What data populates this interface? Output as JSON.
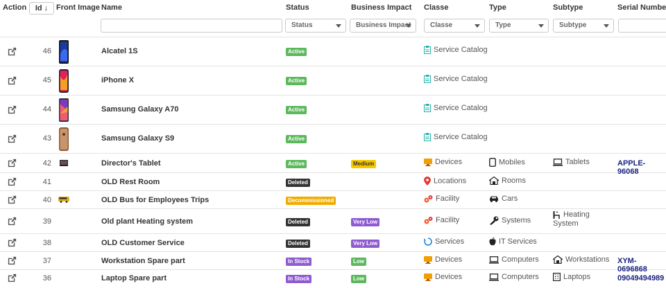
{
  "header": {
    "action": "Action",
    "id": "Id",
    "front_image": "Front Image",
    "name": "Name",
    "status": "Status",
    "business_impact": "Business Impact",
    "classe": "Classe",
    "type": "Type",
    "subtype": "Subtype",
    "serial_number": "Serial Number"
  },
  "filters": {
    "status": "Status",
    "business_impact": "Business Impact",
    "classe": "Classe",
    "type": "Type",
    "subtype": "Subtype"
  },
  "rows": [
    {
      "id": "46",
      "name": "Alcatel 1S",
      "status": "Active",
      "impact": "",
      "classe": "Service Catalog",
      "type": "",
      "subtype": "",
      "serial": ""
    },
    {
      "id": "45",
      "name": "iPhone X",
      "status": "Active",
      "impact": "",
      "classe": "Service Catalog",
      "type": "",
      "subtype": "",
      "serial": ""
    },
    {
      "id": "44",
      "name": "Samsung Galaxy A70",
      "status": "Active",
      "impact": "",
      "classe": "Service Catalog",
      "type": "",
      "subtype": "",
      "serial": ""
    },
    {
      "id": "43",
      "name": "Samsung Galaxy S9",
      "status": "Active",
      "impact": "",
      "classe": "Service Catalog",
      "type": "",
      "subtype": "",
      "serial": ""
    },
    {
      "id": "42",
      "name": "Director's Tablet",
      "status": "Active",
      "impact": "Medium",
      "classe": "Devices",
      "type": "Mobiles",
      "subtype": "Tablets",
      "serial": "APPLE-96068"
    },
    {
      "id": "41",
      "name": "OLD Rest Room",
      "status": "Deleted",
      "impact": "",
      "classe": "Locations",
      "type": "Rooms",
      "subtype": "",
      "serial": ""
    },
    {
      "id": "40",
      "name": "OLD Bus for Employees Trips",
      "status": "Decommissioned",
      "impact": "",
      "classe": "Facility",
      "type": "Cars",
      "subtype": "",
      "serial": ""
    },
    {
      "id": "39",
      "name": "Old plant Heating system",
      "status": "Deleted",
      "impact": "Very Low",
      "classe": "Facility",
      "type": "Systems",
      "subtype": "Heating System",
      "serial": ""
    },
    {
      "id": "38",
      "name": "OLD Customer Service",
      "status": "Deleted",
      "impact": "Very Low",
      "classe": "Services",
      "type": "IT Services",
      "subtype": "",
      "serial": ""
    },
    {
      "id": "37",
      "name": "Workstation Spare part",
      "status": "In Stock",
      "impact": "Low",
      "classe": "Devices",
      "type": "Computers",
      "subtype": "Workstations",
      "serial": "XYM-0696868"
    },
    {
      "id": "36",
      "name": "Laptop Spare part",
      "status": "In Stock",
      "impact": "Low",
      "classe": "Devices",
      "type": "Computers",
      "subtype": "Laptops",
      "serial": "09049494989"
    }
  ],
  "colors": {
    "active": "#5cb85c",
    "deleted": "#333333",
    "decommissioned": "#f0ad00",
    "in_stock": "#8e5bd0",
    "medium": "#f5c800",
    "very_low": "#8e5bd0",
    "low": "#5cb85c",
    "serial": "#1a237e"
  }
}
